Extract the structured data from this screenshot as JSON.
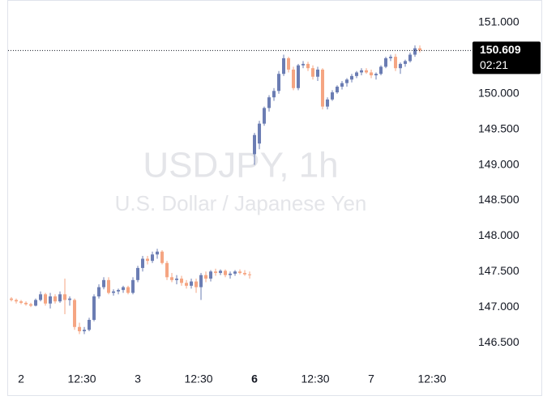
{
  "chart_data": {
    "type": "candlestick",
    "watermark_title": "USDJPY, 1h",
    "watermark_subtitle": "U.S. Dollar / Japanese Yen",
    "up_color": "#6b7db3",
    "down_color": "#f5a582",
    "x": [
      -2,
      -1,
      0,
      1,
      2,
      3,
      4,
      5,
      6,
      7,
      8,
      9,
      10,
      11,
      12,
      13,
      14,
      15,
      16,
      17,
      18,
      19,
      20,
      21,
      22,
      23,
      24,
      25,
      26,
      27,
      28,
      29,
      30,
      31,
      32,
      33,
      34,
      35,
      36,
      37,
      38,
      39,
      40,
      41,
      42,
      43,
      44,
      45,
      46,
      47,
      48,
      49,
      50,
      51,
      52,
      53,
      54,
      55,
      56,
      57,
      58,
      59,
      60,
      61,
      62,
      63,
      64,
      65,
      66,
      67,
      68,
      69,
      70,
      71,
      72,
      73,
      74,
      75,
      76,
      77,
      78,
      79,
      80,
      81,
      82
    ],
    "series": [
      {
        "name": "open",
        "values": [
          147.12,
          147.1,
          147.08,
          147.06,
          147.04,
          147.02,
          147.1,
          147.18,
          147.05,
          147.15,
          147.08,
          147.18,
          147.1,
          147.1,
          146.72,
          146.66,
          146.68,
          146.82,
          147.15,
          147.28,
          147.38,
          147.2,
          147.22,
          147.24,
          147.28,
          147.2,
          147.38,
          147.55,
          147.68,
          147.65,
          147.74,
          147.78,
          147.62,
          147.42,
          147.38,
          147.4,
          147.34,
          147.3,
          147.36,
          147.28,
          147.45,
          147.4,
          147.5,
          147.48,
          147.51,
          147.45,
          147.47,
          147.5,
          147.48,
          147.46,
          149.15,
          149.3,
          149.58,
          149.8,
          149.95,
          150.04,
          150.28,
          150.5,
          150.34,
          150.08,
          150.4,
          150.42,
          150.36,
          150.24,
          150.34,
          149.82,
          149.92,
          150.02,
          150.1,
          150.15,
          150.2,
          150.25,
          150.3,
          150.33,
          150.3,
          150.26,
          150.28,
          150.38,
          150.5,
          150.52,
          150.36,
          150.42,
          150.46,
          150.55,
          150.64
        ]
      },
      {
        "name": "high",
        "values": [
          147.14,
          147.12,
          147.1,
          147.08,
          147.06,
          147.12,
          147.22,
          147.2,
          147.2,
          147.18,
          147.22,
          147.4,
          147.15,
          147.12,
          146.78,
          146.72,
          146.85,
          147.18,
          147.32,
          147.42,
          147.42,
          147.25,
          147.26,
          147.3,
          147.3,
          147.42,
          147.58,
          147.72,
          147.72,
          147.78,
          147.82,
          147.8,
          147.65,
          147.48,
          147.45,
          147.44,
          147.38,
          147.4,
          147.4,
          147.48,
          147.5,
          147.52,
          147.54,
          147.53,
          147.53,
          147.5,
          147.52,
          147.53,
          147.52,
          147.5,
          149.45,
          149.62,
          149.82,
          149.98,
          150.08,
          150.32,
          150.55,
          150.52,
          150.38,
          150.42,
          150.46,
          150.45,
          150.4,
          150.38,
          150.36,
          149.95,
          150.05,
          150.12,
          150.18,
          150.22,
          150.28,
          150.32,
          150.36,
          150.36,
          150.34,
          150.3,
          150.4,
          150.52,
          150.55,
          150.56,
          150.44,
          150.48,
          150.58,
          150.68,
          150.68
        ]
      },
      {
        "name": "low",
        "values": [
          147.08,
          147.05,
          147.04,
          147.02,
          147.0,
          147.01,
          147.08,
          147.02,
          146.98,
          147.05,
          147.06,
          146.9,
          147.02,
          146.68,
          146.62,
          146.62,
          146.66,
          146.8,
          147.12,
          147.25,
          147.18,
          147.16,
          147.18,
          147.2,
          147.18,
          147.18,
          147.35,
          147.5,
          147.6,
          147.62,
          147.68,
          147.6,
          147.38,
          147.35,
          147.32,
          147.3,
          147.26,
          147.26,
          147.2,
          147.1,
          147.35,
          147.36,
          147.44,
          147.45,
          147.42,
          147.4,
          147.44,
          147.46,
          147.44,
          147.4,
          149.0,
          149.22,
          149.55,
          149.75,
          149.9,
          150.0,
          150.25,
          150.3,
          150.05,
          150.05,
          150.36,
          150.32,
          150.2,
          150.18,
          149.78,
          149.78,
          149.9,
          150.0,
          150.06,
          150.1,
          150.16,
          150.22,
          150.26,
          150.28,
          150.22,
          150.2,
          150.26,
          150.36,
          150.46,
          150.32,
          150.28,
          150.38,
          150.44,
          150.52,
          150.58
        ]
      },
      {
        "name": "close",
        "values": [
          147.1,
          147.08,
          147.06,
          147.04,
          147.02,
          147.1,
          147.18,
          147.05,
          147.15,
          147.08,
          147.18,
          147.1,
          147.12,
          146.72,
          146.66,
          146.68,
          146.82,
          147.15,
          147.28,
          147.38,
          147.2,
          147.22,
          147.24,
          147.28,
          147.2,
          147.38,
          147.55,
          147.68,
          147.65,
          147.74,
          147.78,
          147.62,
          147.42,
          147.38,
          147.4,
          147.34,
          147.3,
          147.36,
          147.28,
          147.45,
          147.4,
          147.5,
          147.48,
          147.51,
          147.45,
          147.47,
          147.5,
          147.48,
          147.46,
          147.45,
          149.42,
          149.58,
          149.8,
          149.95,
          150.04,
          150.28,
          150.5,
          150.34,
          150.08,
          150.4,
          150.42,
          150.36,
          150.24,
          150.34,
          149.82,
          149.92,
          150.02,
          150.1,
          150.15,
          150.2,
          150.25,
          150.3,
          150.33,
          150.3,
          150.26,
          150.28,
          150.38,
          150.5,
          150.52,
          150.36,
          150.42,
          150.46,
          150.55,
          150.64,
          150.609
        ]
      }
    ],
    "xlim": [
      -2.67,
      92.33
    ],
    "xticks": [
      {
        "value": 0,
        "label": "2"
      },
      {
        "value": 12.5,
        "label": "12:30"
      },
      {
        "value": 24,
        "label": "3"
      },
      {
        "value": 36.5,
        "label": "12:30"
      },
      {
        "value": 48,
        "label": "6"
      },
      {
        "value": 60.5,
        "label": "12:30"
      },
      {
        "value": 72,
        "label": "7"
      },
      {
        "value": 84.5,
        "label": "12:30"
      }
    ],
    "ylim": [
      146.148,
      151.205
    ],
    "yticks": [
      {
        "value": 146.5,
        "label": "146.500"
      },
      {
        "value": 147,
        "label": "147.000"
      },
      {
        "value": 147.5,
        "label": "147.500"
      },
      {
        "value": 148,
        "label": "148.000"
      },
      {
        "value": 148.5,
        "label": "148.500"
      },
      {
        "value": 149,
        "label": "149.000"
      },
      {
        "value": 149.5,
        "label": "149.500"
      },
      {
        "value": 150,
        "label": "150.000"
      },
      {
        "value": 150.5,
        "label": "150.500"
      },
      {
        "value": 151,
        "label": "151.000"
      }
    ],
    "last_price": {
      "value": 150.609,
      "label": "150.609"
    },
    "countdown": "02:21"
  }
}
